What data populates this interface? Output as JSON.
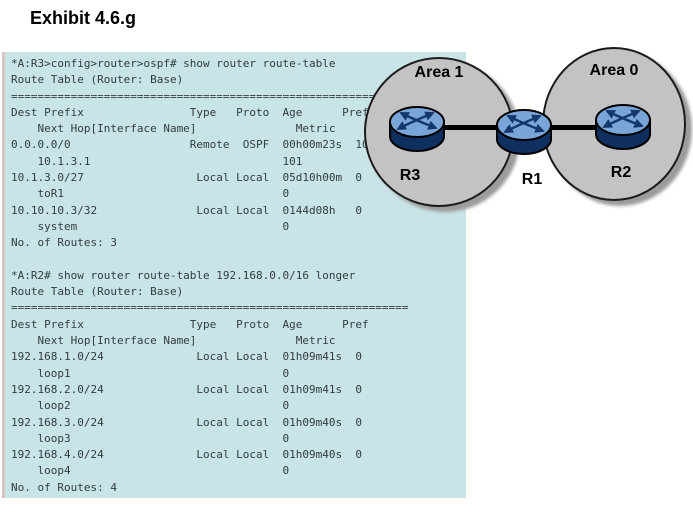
{
  "title": "Exhibit 4.6.g",
  "terminal": {
    "separator": "============================================================",
    "headers_row1": [
      "Dest Prefix",
      "Type",
      "Proto",
      "Age",
      "Pref"
    ],
    "headers_row2": [
      "Next Hop[Interface Name]",
      "Metric"
    ],
    "blocks": [
      {
        "command": "*A:R3>config>router>ospf# show router route-table",
        "table_title": "Route Table (Router: Base)",
        "routes": [
          {
            "dest": "0.0.0.0/0",
            "type": "Remote",
            "proto": "OSPF",
            "age": "00h00m23s",
            "pref": "10",
            "next_hop": "10.1.3.1",
            "metric": "101"
          },
          {
            "dest": "10.1.3.0/27",
            "type": "Local",
            "proto": "Local",
            "age": "05d10h00m",
            "pref": "0",
            "next_hop": "toR1",
            "metric": "0"
          },
          {
            "dest": "10.10.10.3/32",
            "type": "Local",
            "proto": "Local",
            "age": "0144d08h",
            "pref": "0",
            "next_hop": "system",
            "metric": "0"
          }
        ],
        "footer": "No. of Routes: 3"
      },
      {
        "command": "*A:R2# show router route-table 192.168.0.0/16 longer",
        "table_title": "Route Table (Router: Base)",
        "routes": [
          {
            "dest": "192.168.1.0/24",
            "type": "Local",
            "proto": "Local",
            "age": "01h09m41s",
            "pref": "0",
            "next_hop": "loop1",
            "metric": "0"
          },
          {
            "dest": "192.168.2.0/24",
            "type": "Local",
            "proto": "Local",
            "age": "01h09m41s",
            "pref": "0",
            "next_hop": "loop2",
            "metric": "0"
          },
          {
            "dest": "192.168.3.0/24",
            "type": "Local",
            "proto": "Local",
            "age": "01h09m40s",
            "pref": "0",
            "next_hop": "loop3",
            "metric": "0"
          },
          {
            "dest": "192.168.4.0/24",
            "type": "Local",
            "proto": "Local",
            "age": "01h09m40s",
            "pref": "0",
            "next_hop": "loop4",
            "metric": "0"
          }
        ],
        "footer": "No. of Routes: 4"
      }
    ]
  },
  "diagram": {
    "areas": [
      {
        "label": "Area 1"
      },
      {
        "label": "Area 0"
      }
    ],
    "routers": [
      {
        "label": "R3"
      },
      {
        "label": "R1"
      },
      {
        "label": "R2"
      }
    ],
    "links": [
      "R3-R1",
      "R1-R2"
    ]
  },
  "colors": {
    "panel_bg": "#c8e4e6",
    "panel_border": "#d9c4c4",
    "terminal_text": "#333c40",
    "circle_fill": "#c3c3c3",
    "circle_border": "#1c1c1c",
    "circle_shadow": "#9c9c9c",
    "router_top": "#7aa5d8",
    "router_side": "#0f2f5f",
    "arrow": "#14386b",
    "link": "#000000"
  }
}
